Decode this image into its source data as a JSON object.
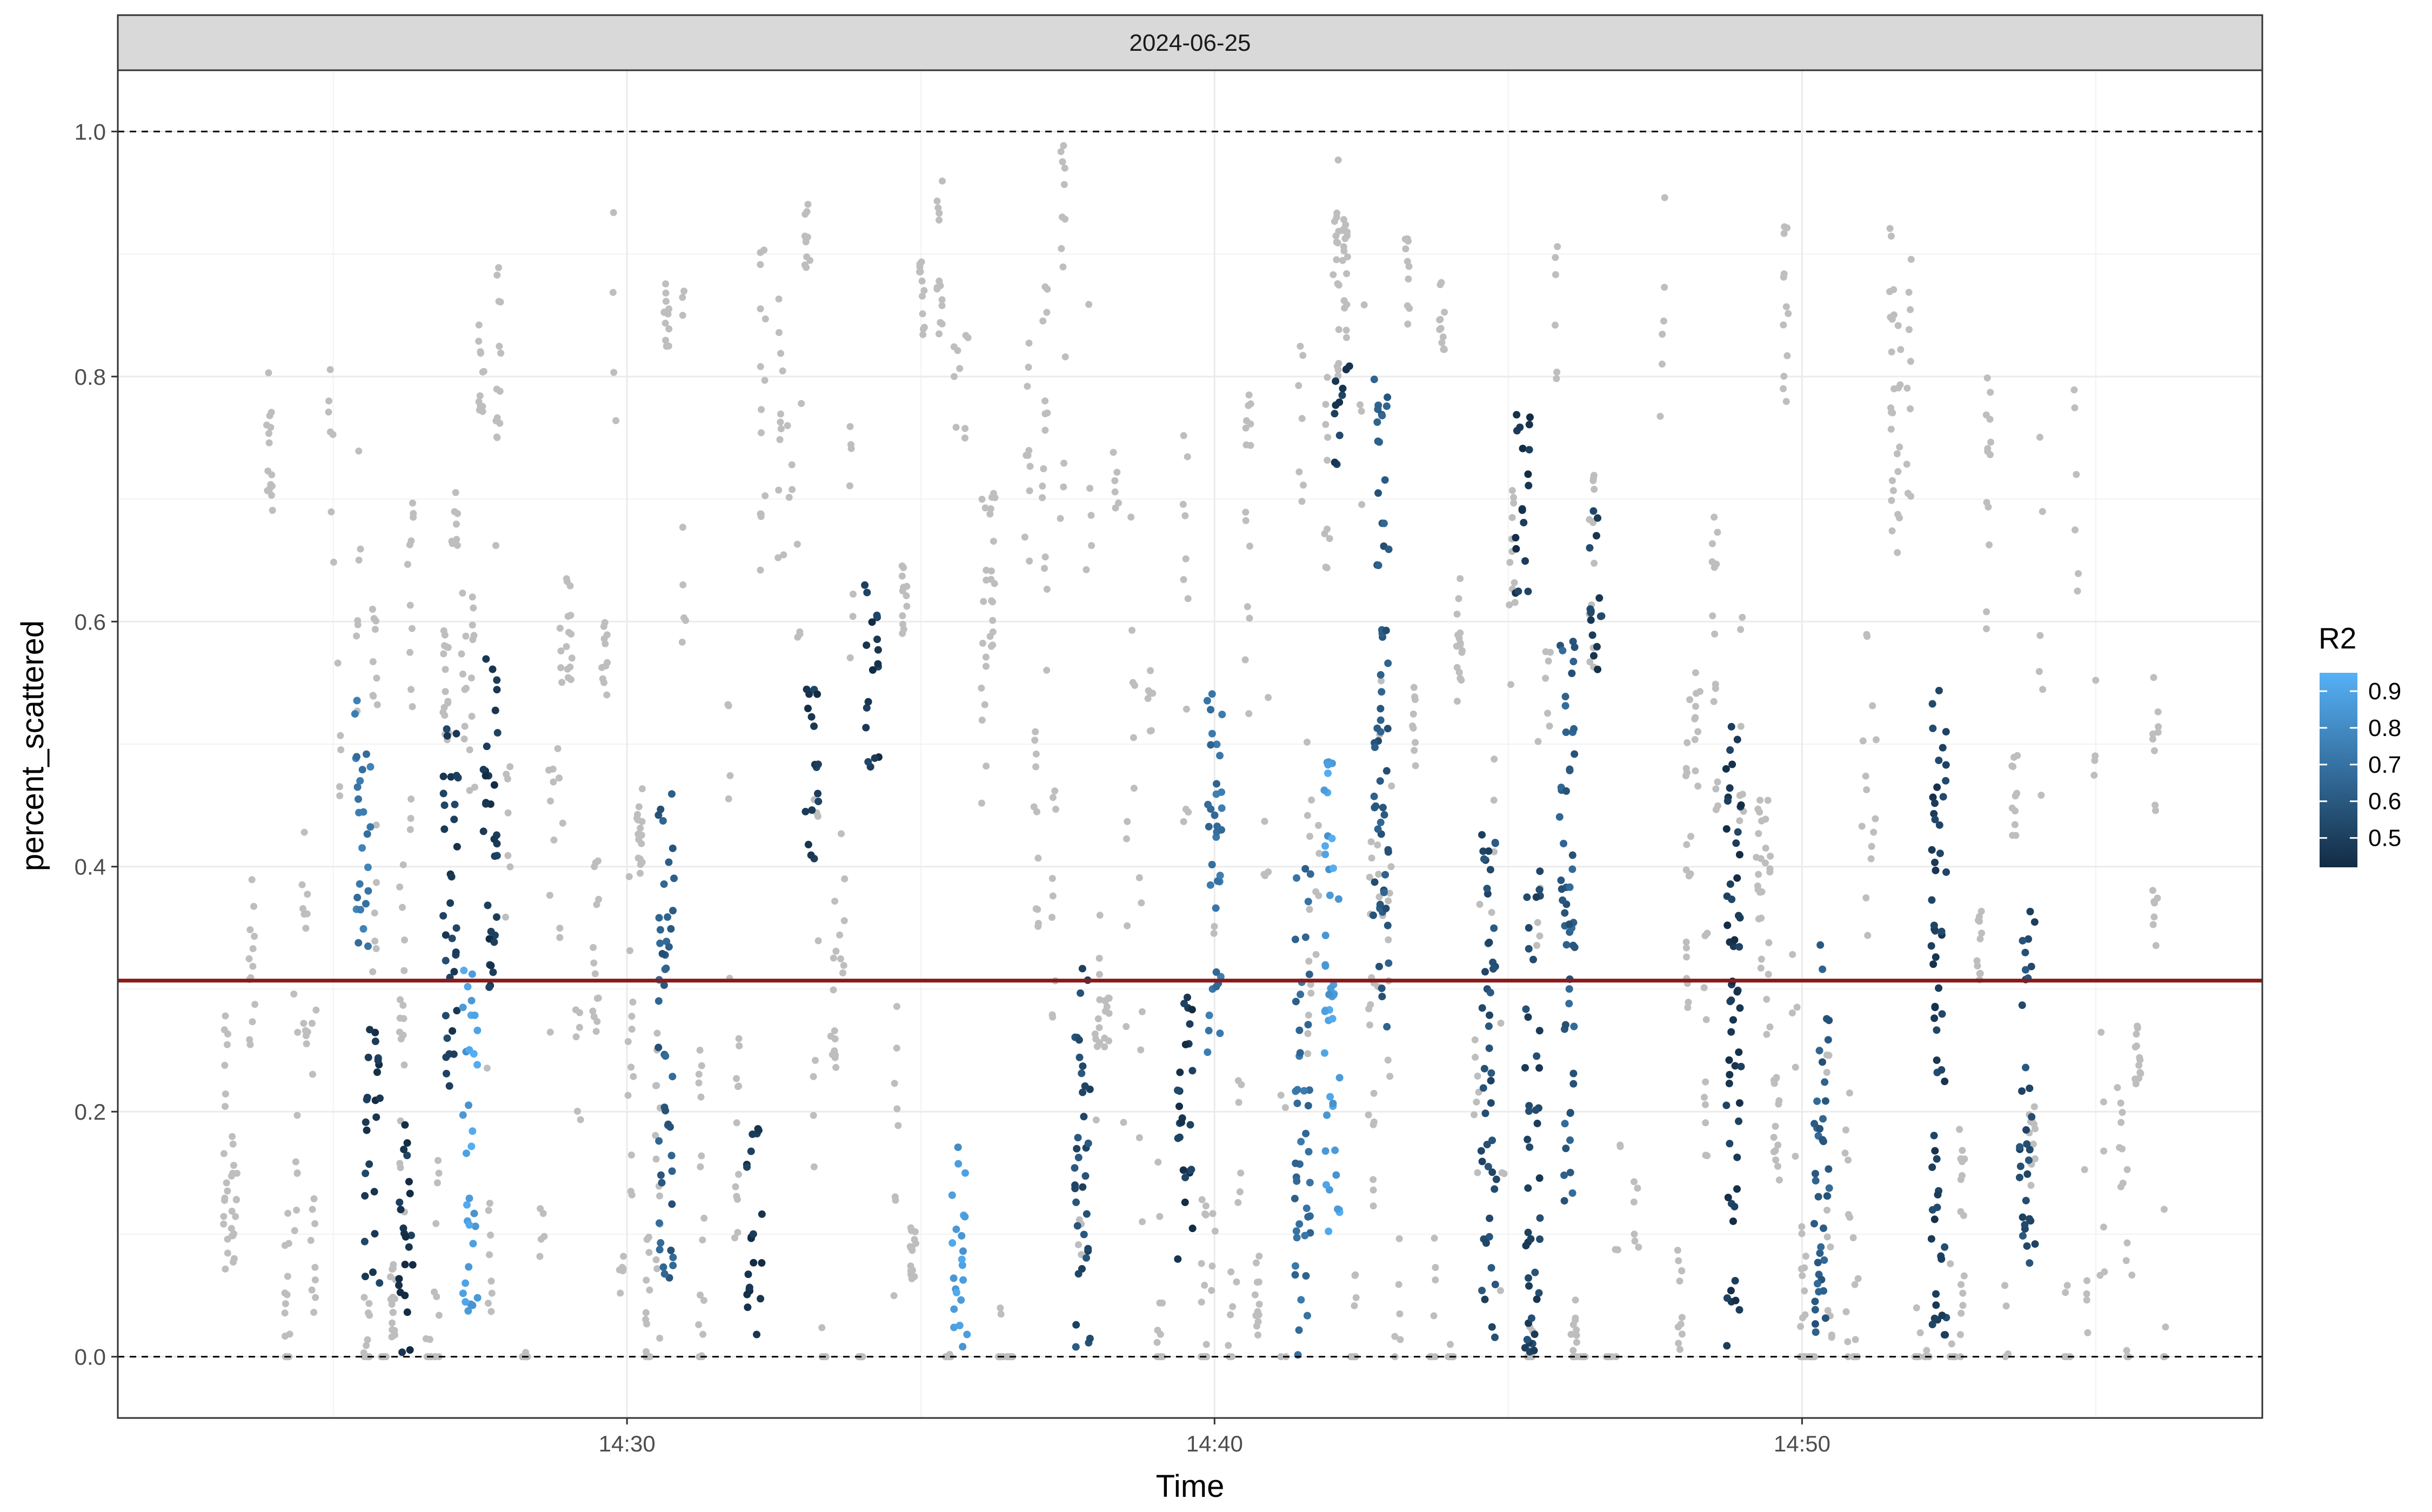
{
  "chart_data": {
    "type": "scatter",
    "facet_label": "2024-06-25",
    "xlabel": "Time",
    "ylabel": "percent_scattered",
    "x_ticks": [
      "14:30",
      "14:40",
      "14:50"
    ],
    "y_ticks": [
      "0.0",
      "0.2",
      "0.4",
      "0.6",
      "0.8",
      "1.0"
    ],
    "xlim": [
      "14:21:20",
      "14:57:50"
    ],
    "ylim": [
      -0.05,
      1.05
    ],
    "grid": true,
    "reference_lines": {
      "dashed_y": [
        0.0,
        1.0
      ],
      "threshold_y": 0.307,
      "threshold_color": "#8b1a1a",
      "dashed_color": "#000000"
    },
    "color_scale": {
      "title": "R2",
      "breaks": [
        "0.9",
        "0.8",
        "0.7",
        "0.6",
        "0.5"
      ],
      "break_values": [
        0.9,
        0.8,
        0.7,
        0.6,
        0.5
      ],
      "limits": [
        0.42,
        0.95
      ],
      "low_color": "#132b43",
      "high_color": "#56b1f7",
      "na_color": "#bebebe",
      "legend_position": "right"
    },
    "colored_clusters": [
      {
        "time": "14:25:30",
        "y_range": [
          0.32,
          0.55
        ],
        "r2": 0.72
      },
      {
        "time": "14:25:40",
        "y_range": [
          0.05,
          0.27
        ],
        "r2": 0.48
      },
      {
        "time": "14:26:15",
        "y_range": [
          0.0,
          0.2
        ],
        "r2": 0.46
      },
      {
        "time": "14:27:00",
        "y_range": [
          0.22,
          0.53
        ],
        "r2": 0.5
      },
      {
        "time": "14:27:20",
        "y_range": [
          0.02,
          0.32
        ],
        "r2": 0.88
      },
      {
        "time": "14:27:40",
        "y_range": [
          0.3,
          0.59
        ],
        "r2": 0.47
      },
      {
        "time": "14:30:40",
        "y_range": [
          0.05,
          0.48
        ],
        "r2": 0.62
      },
      {
        "time": "14:32:10",
        "y_range": [
          0.0,
          0.19
        ],
        "r2": 0.46
      },
      {
        "time": "14:33:10",
        "y_range": [
          0.4,
          0.55
        ],
        "r2": 0.47
      },
      {
        "time": "14:34:10",
        "y_range": [
          0.48,
          0.64
        ],
        "r2": 0.47
      },
      {
        "time": "14:35:40",
        "y_range": [
          0.0,
          0.2
        ],
        "r2": 0.86
      },
      {
        "time": "14:37:45",
        "y_range": [
          0.0,
          0.33
        ],
        "r2": 0.55
      },
      {
        "time": "14:39:30",
        "y_range": [
          0.07,
          0.31
        ],
        "r2": 0.48
      },
      {
        "time": "14:40:00",
        "y_range": [
          0.24,
          0.56
        ],
        "r2": 0.7
      },
      {
        "time": "14:41:30",
        "y_range": [
          0.0,
          0.4
        ],
        "r2": 0.68
      },
      {
        "time": "14:42:00",
        "y_range": [
          0.1,
          0.5
        ],
        "r2": 0.88
      },
      {
        "time": "14:42:10",
        "y_range": [
          0.72,
          0.81
        ],
        "r2": 0.5
      },
      {
        "time": "14:42:50",
        "y_range": [
          0.26,
          0.81
        ],
        "r2": 0.6
      },
      {
        "time": "14:44:40",
        "y_range": [
          0.0,
          0.43
        ],
        "r2": 0.55
      },
      {
        "time": "14:45:15",
        "y_range": [
          0.62,
          0.78
        ],
        "r2": 0.47
      },
      {
        "time": "14:45:25",
        "y_range": [
          0.0,
          0.4
        ],
        "r2": 0.52
      },
      {
        "time": "14:46:00",
        "y_range": [
          0.12,
          0.6
        ],
        "r2": 0.62
      },
      {
        "time": "14:46:30",
        "y_range": [
          0.56,
          0.7
        ],
        "r2": 0.5
      },
      {
        "time": "14:48:50",
        "y_range": [
          0.0,
          0.52
        ],
        "r2": 0.47
      },
      {
        "time": "14:50:20",
        "y_range": [
          0.02,
          0.37
        ],
        "r2": 0.62
      },
      {
        "time": "14:52:20",
        "y_range": [
          0.0,
          0.55
        ],
        "r2": 0.5
      },
      {
        "time": "14:53:50",
        "y_range": [
          0.07,
          0.37
        ],
        "r2": 0.55
      }
    ],
    "na_clusters_note": "R2 = NA points drawn in #bebebe across 14:23–14:56, y 0.0–1.0"
  }
}
